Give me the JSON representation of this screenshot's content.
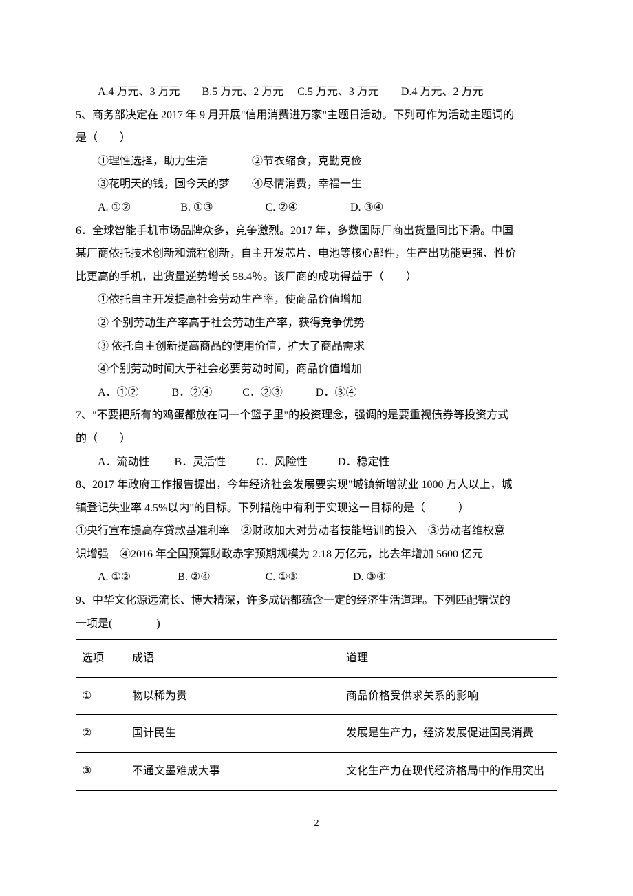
{
  "q4": {
    "options": "A.4 万元、3 万元        B.5 万元、2 万元     C.5 万元、3 万元        D.4 万元、2 万元"
  },
  "q5": {
    "stem1": "5、商务部决定在 2017 年 9 月开展\"信用消费进万家\"主题日活动。下列可作为活动主题词的",
    "stem2": "是（　　）",
    "line1": "①理性选择，助力生活　　　　②节衣缩食，克勤克俭",
    "line2": "③花明天的钱，圆今天的梦　　④尽情消费，幸福一生",
    "options": "A. ①②                  B. ①③                   C. ②④                   D. ③④"
  },
  "q6": {
    "stem1": "6．全球智能手机市场品牌众多，竞争激烈。2017 年，多数国际厂商出货量同比下滑。中国",
    "stem2": "某厂商依托技术创新和流程创新，自主开发芯片、电池等核心部件，生产出功能更强、性价",
    "stem3": "比更高的手机，出货量逆势增长 58.4％。该厂商的成功得益于（　　）",
    "line1": "①依托自主开发提高社会劳动生产率，使商品价值增加",
    "line2": "② 个别劳动生产率高于社会劳动生产率，获得竞争优势",
    "line3": "③ 依托自主创新提高商品的使用价值，扩大了商品需求",
    "line4": "④个别劳动时间大于社会必要劳动时间，商品价值增加",
    "options": "A．①②            B．②④           C．②③            D．③④"
  },
  "q7": {
    "stem1": "7、\"不要把所有的鸡蛋都放在同一个篮子里\"的投资理念，强调的是要重视债券等投资方式",
    "stem2": "的（　　）",
    "options": "A．流动性         B．灵活性           C．风险性           D．稳定性"
  },
  "q8": {
    "stem1": "8、2017 年政府工作报告提出，今年经济社会发展要实现\"城镇新增就业 1000 万人以上，城",
    "stem2": "镇登记失业率 4.5%以内\"的目标。下列措施中有利于实现这一目标的是（　　　）",
    "stem3": "①央行宣布提高存贷款基准利率　②财政加大对劳动者技能培训的投入　③劳动者维权意",
    "stem4": "识增强　④2016 年全国预算财政赤字预期规模为 2.18 万亿元，比去年增加 5600 亿元",
    "options": "A. ①②                 B. ②④                    C. ①③                    D. ③④"
  },
  "q9": {
    "stem1": "9、中华文化源远流长、博大精深，许多成语都蕴含一定的经济生活道理。下列匹配错误的",
    "stem2": "一项是(　　　　)"
  },
  "table": {
    "header": {
      "c1": "选项",
      "c2": "成语",
      "c3": "道理"
    },
    "rows": [
      {
        "c1": "①",
        "c2": "物以稀为贵",
        "c3": "商品价格受供求关系的影响"
      },
      {
        "c1": "②",
        "c2": "国计民生",
        "c3": "发展是生产力，经济发展促进国民消费"
      },
      {
        "c1": "③",
        "c2": "不通文墨难成大事",
        "c3": "文化生产力在现代经济格局中的作用突出"
      }
    ]
  },
  "page_number": "2"
}
